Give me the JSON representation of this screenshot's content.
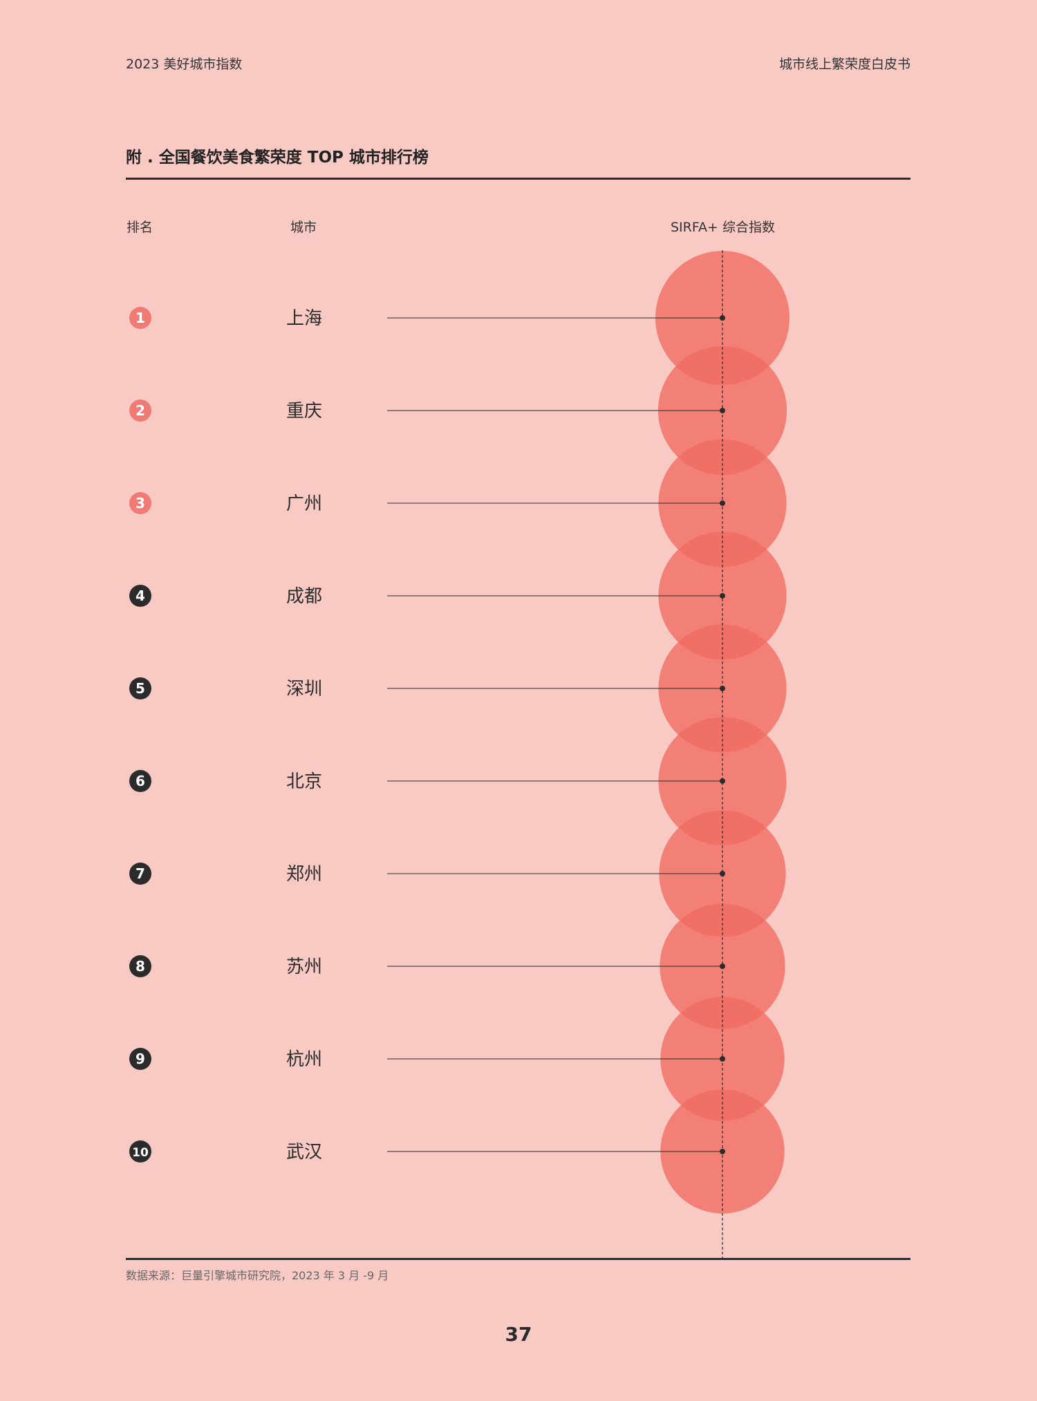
{
  "header": {
    "left": "2023 美好城市指数",
    "right": "城市线上繁荣度白皮书"
  },
  "title": "附 . 全国餐饮美食繁荣度 TOP 城市排行榜",
  "columns": {
    "rank": "排名",
    "city": "城市",
    "index": "SIRFA+ 综合指数"
  },
  "colors": {
    "background": "#f9cac4",
    "bubble": "#f06b61",
    "rank_top3": "#f07b74",
    "rank_other": "#2b2b2b",
    "line": "#2b2b2b"
  },
  "chart_data": {
    "type": "bubble-ranking",
    "series_label": "SIRFA+ 综合指数",
    "rows": [
      {
        "rank": "1",
        "city": "上海",
        "relative_size": 1.0,
        "highlight": true
      },
      {
        "rank": "2",
        "city": "重庆",
        "relative_size": 0.96,
        "highlight": true
      },
      {
        "rank": "3",
        "city": "广州",
        "relative_size": 0.955,
        "highlight": true
      },
      {
        "rank": "4",
        "city": "成都",
        "relative_size": 0.955,
        "highlight": false
      },
      {
        "rank": "5",
        "city": "深圳",
        "relative_size": 0.955,
        "highlight": false
      },
      {
        "rank": "6",
        "city": "北京",
        "relative_size": 0.955,
        "highlight": false
      },
      {
        "rank": "7",
        "city": "郑州",
        "relative_size": 0.945,
        "highlight": false
      },
      {
        "rank": "8",
        "city": "苏州",
        "relative_size": 0.935,
        "highlight": false
      },
      {
        "rank": "9",
        "city": "杭州",
        "relative_size": 0.925,
        "highlight": false
      },
      {
        "rank": "10",
        "city": "武汉",
        "relative_size": 0.925,
        "highlight": false
      }
    ]
  },
  "footer": {
    "source": "数据来源：巨量引擎城市研究院，2023 年 3 月 -9 月",
    "page": "37"
  }
}
